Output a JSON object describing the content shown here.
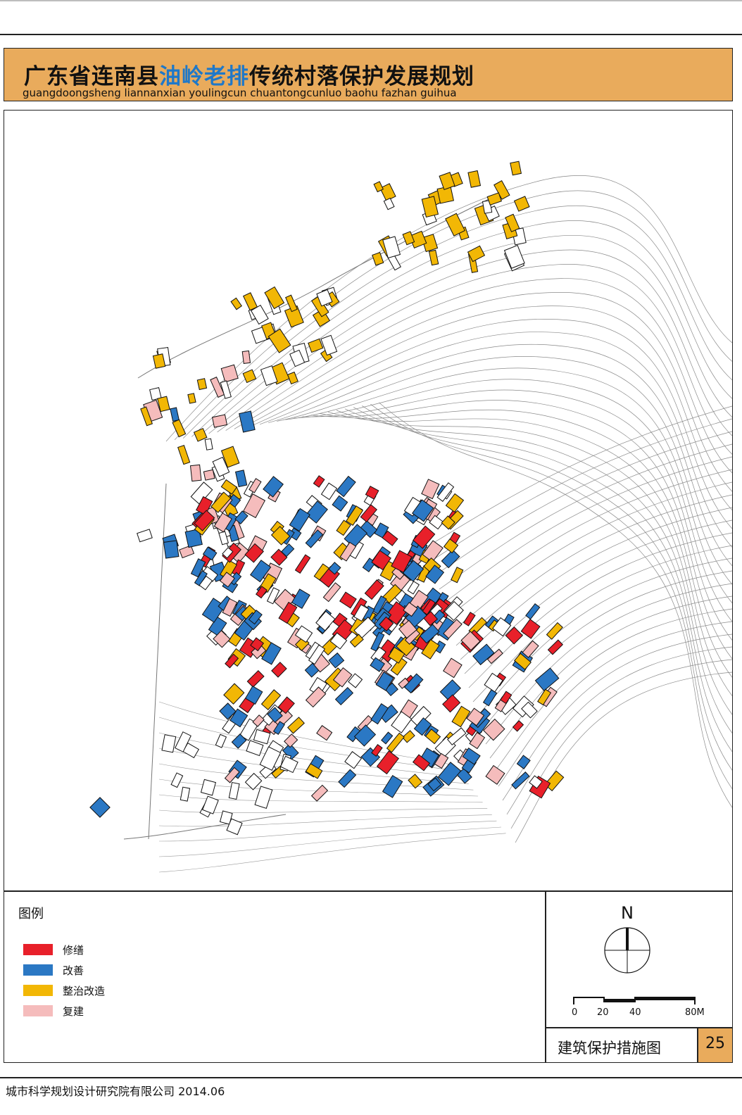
{
  "header": {
    "title_prefix": "广东省连南县",
    "title_highlight": "油岭老排",
    "title_suffix": "传统村落保护发展规划",
    "subtitle_pinyin": "guangdoongsheng  liannanxian youlingcun chuantongcunluo baohu fazhan guihua"
  },
  "colors": {
    "title_band": "#e9ab5c",
    "title_highlight": "#1f78c8",
    "repair": "#e8202a",
    "improve": "#2b78c4",
    "rectify": "#f2b705",
    "rebuild": "#f5bcbc"
  },
  "legend": {
    "title": "图例",
    "items": [
      {
        "label": "修缮",
        "color": "#e8202a"
      },
      {
        "label": "改善",
        "color": "#2b78c4"
      },
      {
        "label": "整治改造",
        "color": "#f2b705"
      },
      {
        "label": "复建",
        "color": "#f5bcbc"
      }
    ]
  },
  "compass": {
    "label": "N"
  },
  "scale_bar": {
    "ticks": [
      "0",
      "20",
      "40",
      "80M"
    ]
  },
  "drawing": {
    "name": "建筑保护措施图",
    "page_number": "25"
  },
  "footer": {
    "text": "城市科学规划设计研究院有限公司   2014.06"
  }
}
